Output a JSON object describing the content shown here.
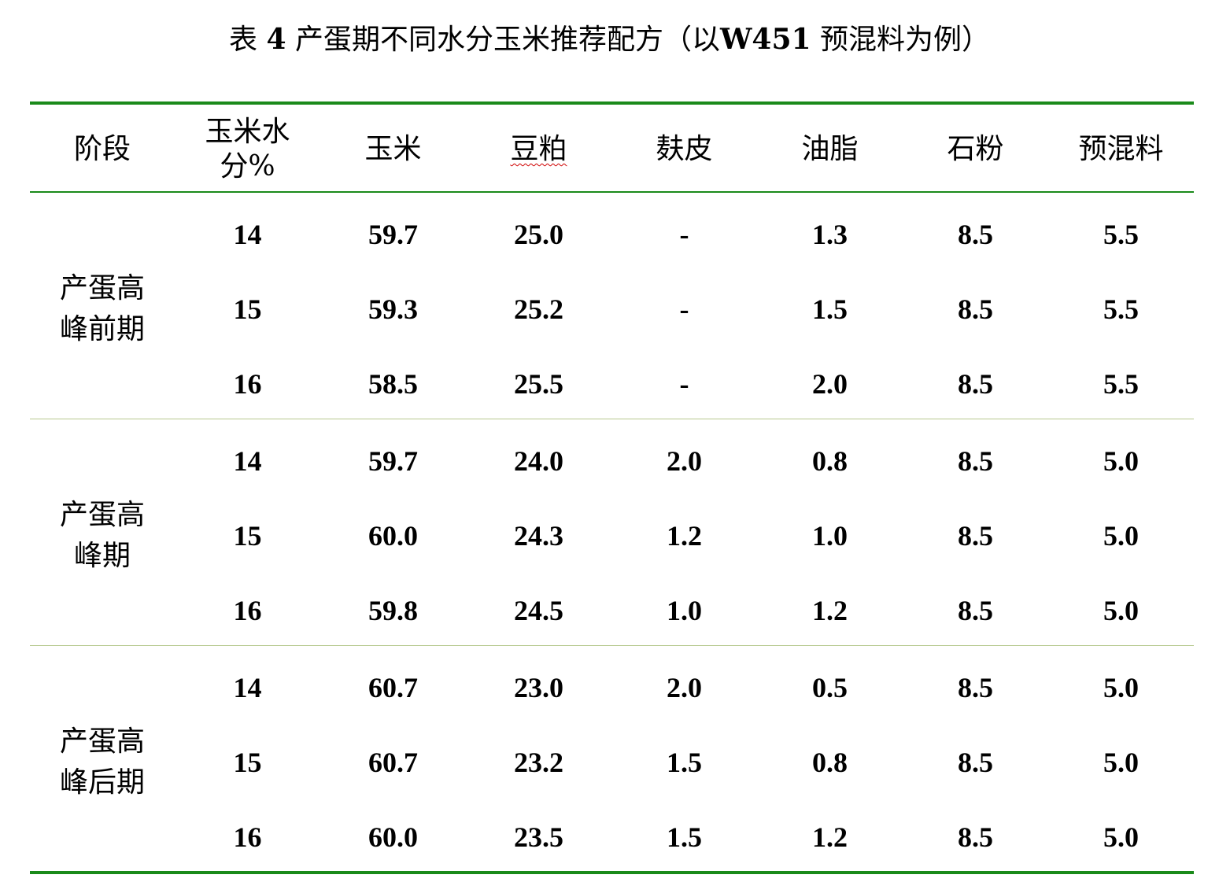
{
  "title": {
    "prefix": "表",
    "number": "4",
    "text_part1": "产蛋期不同水分玉米推荐配方（以",
    "code": "W451",
    "text_part2": "预混料为例）"
  },
  "colors": {
    "rule_main": "#1a8a1a",
    "rule_group": "#b7c98f",
    "squiggle": "#d00000"
  },
  "headers": [
    "阶段",
    "玉米水分%",
    "玉米",
    "豆粕",
    "麸皮",
    "油脂",
    "石粉",
    "预混料"
  ],
  "groups": [
    {
      "stage": "产蛋高峰前期",
      "rows": [
        [
          "14",
          "59.7",
          "25.0",
          "-",
          "1.3",
          "8.5",
          "5.5"
        ],
        [
          "15",
          "59.3",
          "25.2",
          "-",
          "1.5",
          "8.5",
          "5.5"
        ],
        [
          "16",
          "58.5",
          "25.5",
          "-",
          "2.0",
          "8.5",
          "5.5"
        ]
      ]
    },
    {
      "stage": "产蛋高峰期",
      "rows": [
        [
          "14",
          "59.7",
          "24.0",
          "2.0",
          "0.8",
          "8.5",
          "5.0"
        ],
        [
          "15",
          "60.0",
          "24.3",
          "1.2",
          "1.0",
          "8.5",
          "5.0"
        ],
        [
          "16",
          "59.8",
          "24.5",
          "1.0",
          "1.2",
          "8.5",
          "5.0"
        ]
      ]
    },
    {
      "stage": "产蛋高峰后期",
      "rows": [
        [
          "14",
          "60.7",
          "23.0",
          "2.0",
          "0.5",
          "8.5",
          "5.0"
        ],
        [
          "15",
          "60.7",
          "23.2",
          "1.5",
          "0.8",
          "8.5",
          "5.0"
        ],
        [
          "16",
          "60.0",
          "23.5",
          "1.5",
          "1.2",
          "8.5",
          "5.0"
        ]
      ]
    }
  ]
}
